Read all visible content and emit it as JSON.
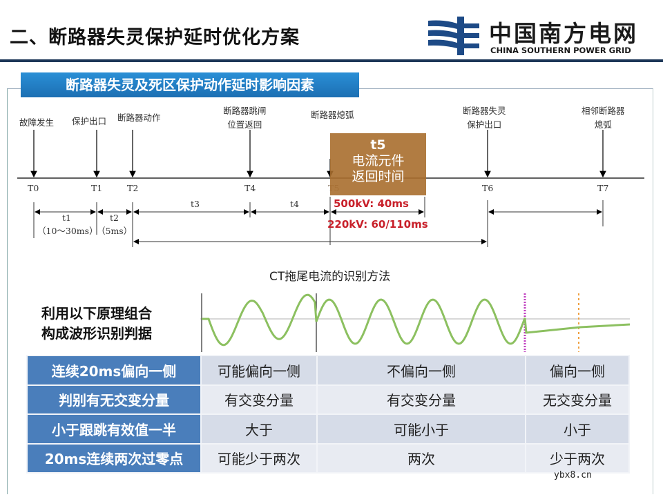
{
  "title": "二、断路器失灵保护延时优化方案",
  "logo": {
    "cn": "中国南方电网",
    "en": "CHINA SOUTHERN POWER GRID"
  },
  "section_header": "断路器失灵及死区保护动作延时影响因素",
  "timeline": {
    "events": [
      {
        "label": "故障发生",
        "tick": "T0"
      },
      {
        "label": "保护出口",
        "tick": "T1"
      },
      {
        "label": "断路器动作",
        "tick": "T2"
      },
      {
        "label": "断路器跳闸\n位置返回",
        "tick": "T4"
      },
      {
        "label": "断路器熄弧",
        "tick": "T5"
      },
      {
        "label": "断路器失灵\n保护出口",
        "tick": "T6"
      },
      {
        "label": "相邻断路器\n熄弧",
        "tick": "T7"
      }
    ],
    "intervals": {
      "t1": "t1",
      "t1_note": "（10～30ms）",
      "t2": "t2",
      "t2_note": "（5ms）",
      "t3": "t3",
      "t4": "t4"
    },
    "t5_box": {
      "title": "t5",
      "line1": "电流元件",
      "line2": "返回时间"
    },
    "t5_500kv": "500kV: 40ms",
    "t5_220kv": "220kV: 60/110ms"
  },
  "wave": {
    "title": "CT拖尾电流的识别方法",
    "colors": {
      "wave": "#8cc060",
      "break": "#c040c0",
      "marker": "#f0a040"
    }
  },
  "left_text": {
    "line1": "利用以下原理组合",
    "line2": "构成波形识别判据"
  },
  "table": {
    "rows": [
      [
        "连续20ms偏向一侧",
        "可能偏向一侧",
        "不偏向一侧",
        "偏向一侧"
      ],
      [
        "判别有无交变分量",
        "有交变分量",
        "有交变分量",
        "无交变分量"
      ],
      [
        "小于跟跳有效值一半",
        "大于",
        "可能小于",
        "小于"
      ],
      [
        "20ms连续两次过零点",
        "可能少于两次",
        "两次",
        "少于两次"
      ]
    ]
  },
  "watermark": "ybx8.cn"
}
